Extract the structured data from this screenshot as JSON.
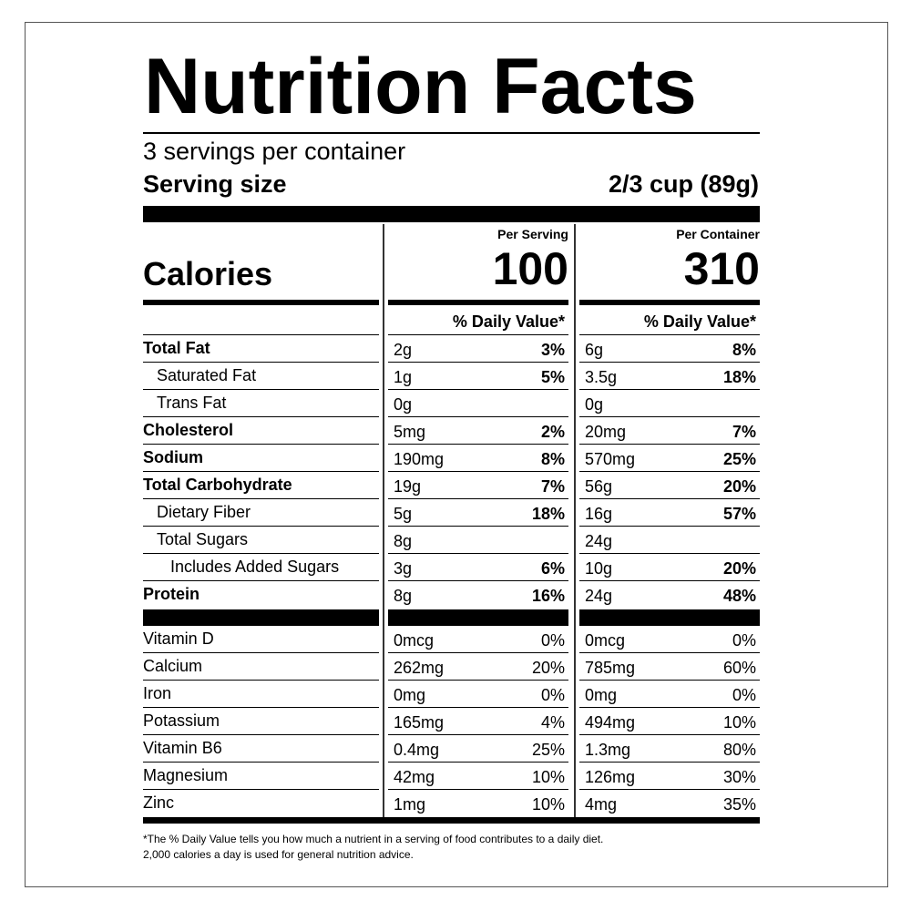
{
  "title": "Nutrition Facts",
  "servings_per_container": "3 servings per container",
  "serving_size": {
    "label": "Serving size",
    "value": "2/3 cup (89g)"
  },
  "calories": {
    "label": "Calories",
    "per_serving_label": "Per Serving",
    "per_serving": "100",
    "per_container_label": "Per Container",
    "per_container": "310"
  },
  "dv_header": "% Daily Value*",
  "nutrients": [
    {
      "name": "Total Fat",
      "bold": true,
      "indent": 0,
      "serving_amt": "2g",
      "serving_dv": "3%",
      "container_amt": "6g",
      "container_dv": "8%"
    },
    {
      "name": "Saturated Fat",
      "bold": false,
      "indent": 1,
      "serving_amt": "1g",
      "serving_dv": "5%",
      "container_amt": "3.5g",
      "container_dv": "18%"
    },
    {
      "name": "Trans Fat",
      "bold": false,
      "indent": 1,
      "serving_amt": "0g",
      "serving_dv": "",
      "container_amt": "0g",
      "container_dv": ""
    },
    {
      "name": "Cholesterol",
      "bold": true,
      "indent": 0,
      "serving_amt": "5mg",
      "serving_dv": "2%",
      "container_amt": "20mg",
      "container_dv": "7%"
    },
    {
      "name": "Sodium",
      "bold": true,
      "indent": 0,
      "serving_amt": "190mg",
      "serving_dv": "8%",
      "container_amt": "570mg",
      "container_dv": "25%"
    },
    {
      "name": "Total Carbohydrate",
      "bold": true,
      "indent": 0,
      "serving_amt": "19g",
      "serving_dv": "7%",
      "container_amt": "56g",
      "container_dv": "20%"
    },
    {
      "name": "Dietary Fiber",
      "bold": false,
      "indent": 1,
      "serving_amt": "5g",
      "serving_dv": "18%",
      "container_amt": "16g",
      "container_dv": "57%"
    },
    {
      "name": "Total Sugars",
      "bold": false,
      "indent": 1,
      "serving_amt": "8g",
      "serving_dv": "",
      "container_amt": "24g",
      "container_dv": ""
    },
    {
      "name": "Includes Added Sugars",
      "bold": false,
      "indent": 2,
      "serving_amt": "3g",
      "serving_dv": "6%",
      "container_amt": "10g",
      "container_dv": "20%"
    },
    {
      "name": "Protein",
      "bold": true,
      "indent": 0,
      "serving_amt": "8g",
      "serving_dv": "16%",
      "container_amt": "24g",
      "container_dv": "48%"
    }
  ],
  "vitamins": [
    {
      "name": "Vitamin D",
      "serving_amt": "0mcg",
      "serving_dv": "0%",
      "container_amt": "0mcg",
      "container_dv": "0%"
    },
    {
      "name": "Calcium",
      "serving_amt": "262mg",
      "serving_dv": "20%",
      "container_amt": "785mg",
      "container_dv": "60%"
    },
    {
      "name": "Iron",
      "serving_amt": "0mg",
      "serving_dv": "0%",
      "container_amt": "0mg",
      "container_dv": "0%"
    },
    {
      "name": "Potassium",
      "serving_amt": "165mg",
      "serving_dv": "4%",
      "container_amt": "494mg",
      "container_dv": "10%"
    },
    {
      "name": "Vitamin B6",
      "serving_amt": "0.4mg",
      "serving_dv": "25%",
      "container_amt": "1.3mg",
      "container_dv": "80%"
    },
    {
      "name": "Magnesium",
      "serving_amt": "42mg",
      "serving_dv": "10%",
      "container_amt": "126mg",
      "container_dv": "30%"
    },
    {
      "name": "Zinc",
      "serving_amt": "1mg",
      "serving_dv": "10%",
      "container_amt": "4mg",
      "container_dv": "35%"
    }
  ],
  "footnote_line1": "*The % Daily Value tells you how much a nutrient in a serving of food contributes to a daily diet.",
  "footnote_line2": "2,000 calories a day is used for general nutrition advice."
}
